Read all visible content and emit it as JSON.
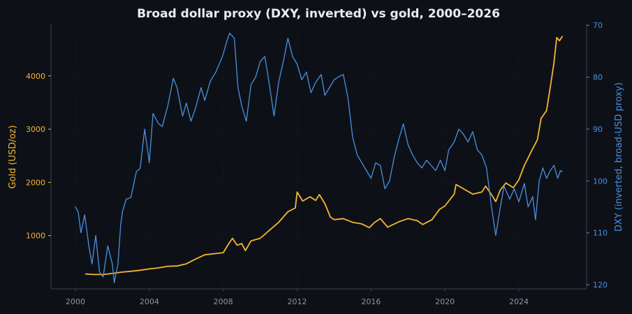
{
  "chart_data": {
    "type": "line",
    "title": "Broad dollar proxy (DXY, inverted) vs gold, 2000–2026",
    "xlabel": "",
    "x_ticks": [
      "2000",
      "2004",
      "2008",
      "2012",
      "2016",
      "2020",
      "2024"
    ],
    "y_left": {
      "label": "Gold (USD/oz)",
      "ticks": [
        "1000",
        "2000",
        "3000",
        "4000"
      ],
      "range": [
        0,
        4980
      ]
    },
    "y_right": {
      "label": "DXY (inverted, broad-USD proxy)",
      "ticks": [
        "70",
        "80",
        "90",
        "100",
        "110",
        "120"
      ],
      "range": [
        120.8,
        69.7
      ],
      "inverted": true
    },
    "grid": false,
    "series": [
      {
        "axis": "left",
        "color": "#f5b731",
        "points": [
          [
            "2000.55",
            280
          ],
          [
            "2001.0",
            270
          ],
          [
            "2001.5",
            270
          ],
          [
            "2002.0",
            290
          ],
          [
            "2002.5",
            315
          ],
          [
            "2003.0",
            330
          ],
          [
            "2003.5",
            350
          ],
          [
            "2004.0",
            375
          ],
          [
            "2004.5",
            395
          ],
          [
            "2005.0",
            425
          ],
          [
            "2005.5",
            430
          ],
          [
            "2006.0",
            470
          ],
          [
            "2006.5",
            560
          ],
          [
            "2007.0",
            640
          ],
          [
            "2007.5",
            660
          ],
          [
            "2008.0",
            680
          ],
          [
            "2008.3",
            850
          ],
          [
            "2008.5",
            950
          ],
          [
            "2008.75",
            820
          ],
          [
            "2009.0",
            850
          ],
          [
            "2009.2",
            720
          ],
          [
            "2009.5",
            900
          ],
          [
            "2010.0",
            950
          ],
          [
            "2010.5",
            1100
          ],
          [
            "2011.0",
            1250
          ],
          [
            "2011.5",
            1450
          ],
          [
            "2011.9",
            1520
          ],
          [
            "2012.0",
            1820
          ],
          [
            "2012.3",
            1650
          ],
          [
            "2012.7",
            1730
          ],
          [
            "2013.0",
            1660
          ],
          [
            "2013.2",
            1770
          ],
          [
            "2013.5",
            1600
          ],
          [
            "2013.8",
            1350
          ],
          [
            "2014.0",
            1300
          ],
          [
            "2014.5",
            1320
          ],
          [
            "2015.0",
            1250
          ],
          [
            "2015.5",
            1220
          ],
          [
            "2015.9",
            1150
          ],
          [
            "2016.2",
            1250
          ],
          [
            "2016.5",
            1320
          ],
          [
            "2016.9",
            1160
          ],
          [
            "2017.5",
            1260
          ],
          [
            "2018.0",
            1320
          ],
          [
            "2018.5",
            1280
          ],
          [
            "2018.8",
            1210
          ],
          [
            "2019.3",
            1300
          ],
          [
            "2019.7",
            1490
          ],
          [
            "2020.0",
            1560
          ],
          [
            "2020.5",
            1780
          ],
          [
            "2020.6",
            1960
          ],
          [
            "2021.0",
            1880
          ],
          [
            "2021.5",
            1780
          ],
          [
            "2022.0",
            1820
          ],
          [
            "2022.2",
            1930
          ],
          [
            "2022.5",
            1780
          ],
          [
            "2022.75",
            1640
          ],
          [
            "2023.0",
            1860
          ],
          [
            "2023.3",
            1990
          ],
          [
            "2023.7",
            1900
          ],
          [
            "2024.0",
            2050
          ],
          [
            "2024.3",
            2320
          ],
          [
            "2024.7",
            2600
          ],
          [
            "2025.0",
            2800
          ],
          [
            "2025.2",
            3200
          ],
          [
            "2025.5",
            3350
          ],
          [
            "2025.75",
            3900
          ],
          [
            "2025.9",
            4250
          ],
          [
            "2026.05",
            4720
          ],
          [
            "2026.2",
            4660
          ],
          [
            "2026.35",
            4740
          ]
        ]
      },
      {
        "axis": "right",
        "color": "#4a90e2",
        "points": [
          [
            "2000.0",
            105.0
          ],
          [
            "2000.15",
            106.0
          ],
          [
            "2000.3",
            110.0
          ],
          [
            "2000.5",
            106.5
          ],
          [
            "2000.75",
            113.0
          ],
          [
            "2000.9",
            116.0
          ],
          [
            "2001.1",
            110.5
          ],
          [
            "2001.3",
            117.5
          ],
          [
            "2001.5",
            118.5
          ],
          [
            "2001.75",
            112.5
          ],
          [
            "2002.0",
            116.0
          ],
          [
            "2002.1",
            119.6
          ],
          [
            "2002.3",
            116.0
          ],
          [
            "2002.45",
            108.5
          ],
          [
            "2002.55",
            105.8
          ],
          [
            "2002.75",
            103.5
          ],
          [
            "2003.0",
            103.2
          ],
          [
            "2003.3",
            98.2
          ],
          [
            "2003.5",
            97.6
          ],
          [
            "2003.75",
            90.0
          ],
          [
            "2004.0",
            96.5
          ],
          [
            "2004.2",
            87.0
          ],
          [
            "2004.5",
            89.0
          ],
          [
            "2004.7",
            89.5
          ],
          [
            "2005.0",
            85.5
          ],
          [
            "2005.3",
            80.2
          ],
          [
            "2005.5",
            82.0
          ],
          [
            "2005.8",
            87.5
          ],
          [
            "2006.0",
            85.0
          ],
          [
            "2006.25",
            88.5
          ],
          [
            "2006.5",
            86.0
          ],
          [
            "2006.8",
            82.0
          ],
          [
            "2007.0",
            84.5
          ],
          [
            "2007.3",
            80.8
          ],
          [
            "2007.6",
            79.0
          ],
          [
            "2007.9",
            76.5
          ],
          [
            "2008.0",
            75.5
          ],
          [
            "2008.2",
            73.0
          ],
          [
            "2008.35",
            71.5
          ],
          [
            "2008.6",
            72.5
          ],
          [
            "2008.8",
            82.0
          ],
          [
            "2009.0",
            85.5
          ],
          [
            "2009.25",
            88.5
          ],
          [
            "2009.5",
            81.5
          ],
          [
            "2009.75",
            80.0
          ],
          [
            "2010.0",
            77.0
          ],
          [
            "2010.25",
            76.0
          ],
          [
            "2010.5",
            81.5
          ],
          [
            "2010.75",
            87.5
          ],
          [
            "2011.0",
            81.0
          ],
          [
            "2011.25",
            77.0
          ],
          [
            "2011.5",
            72.5
          ],
          [
            "2011.75",
            76.0
          ],
          [
            "2012.0",
            77.5
          ],
          [
            "2012.25",
            80.5
          ],
          [
            "2012.5",
            79.0
          ],
          [
            "2012.75",
            83.0
          ],
          [
            "2013.0",
            81.0
          ],
          [
            "2013.3",
            79.5
          ],
          [
            "2013.5",
            83.5
          ],
          [
            "2013.75",
            82.0
          ],
          [
            "2014.0",
            80.5
          ],
          [
            "2014.3",
            79.8
          ],
          [
            "2014.5",
            79.5
          ],
          [
            "2014.75",
            84.0
          ],
          [
            "2015.0",
            91.5
          ],
          [
            "2015.25",
            95.0
          ],
          [
            "2015.5",
            96.5
          ],
          [
            "2015.75",
            98.0
          ],
          [
            "2016.0",
            99.5
          ],
          [
            "2016.25",
            96.5
          ],
          [
            "2016.5",
            97.0
          ],
          [
            "2016.75",
            101.5
          ],
          [
            "2017.0",
            100.0
          ],
          [
            "2017.25",
            95.5
          ],
          [
            "2017.5",
            92.0
          ],
          [
            "2017.75",
            89.0
          ],
          [
            "2018.0",
            93.0
          ],
          [
            "2018.25",
            95.0
          ],
          [
            "2018.5",
            96.5
          ],
          [
            "2018.75",
            97.5
          ],
          [
            "2019.0",
            96.0
          ],
          [
            "2019.25",
            97.0
          ],
          [
            "2019.5",
            98.0
          ],
          [
            "2019.75",
            96.0
          ],
          [
            "2020.0",
            98.0
          ],
          [
            "2020.2",
            94.0
          ],
          [
            "2020.5",
            92.5
          ],
          [
            "2020.75",
            90.0
          ],
          [
            "2021.0",
            91.0
          ],
          [
            "2021.25",
            92.5
          ],
          [
            "2021.5",
            90.5
          ],
          [
            "2021.75",
            94.0
          ],
          [
            "2022.0",
            95.0
          ],
          [
            "2022.25",
            97.5
          ],
          [
            "2022.5",
            104.5
          ],
          [
            "2022.75",
            110.5
          ],
          [
            "2023.0",
            105.0
          ],
          [
            "2023.2",
            101.0
          ],
          [
            "2023.5",
            103.5
          ],
          [
            "2023.75",
            101.5
          ],
          [
            "2024.0",
            104.0
          ],
          [
            "2024.3",
            100.5
          ],
          [
            "2024.5",
            105.0
          ],
          [
            "2024.75",
            103.0
          ],
          [
            "2024.9",
            107.5
          ],
          [
            "2025.1",
            100.0
          ],
          [
            "2025.3",
            97.5
          ],
          [
            "2025.5",
            99.5
          ],
          [
            "2025.7",
            98.0
          ],
          [
            "2025.9",
            97.0
          ],
          [
            "2026.1",
            99.5
          ],
          [
            "2026.25",
            98.0
          ],
          [
            "2026.35",
            98.2
          ]
        ]
      }
    ]
  },
  "colors": {
    "background": "#0d1117",
    "title": "#e6edf3",
    "axis_frame": "#3a404a",
    "grid_dot": "#1b2029",
    "x_tick_text": "#8b949e",
    "left_axis": "#f5b731",
    "right_axis": "#4a90e2"
  }
}
